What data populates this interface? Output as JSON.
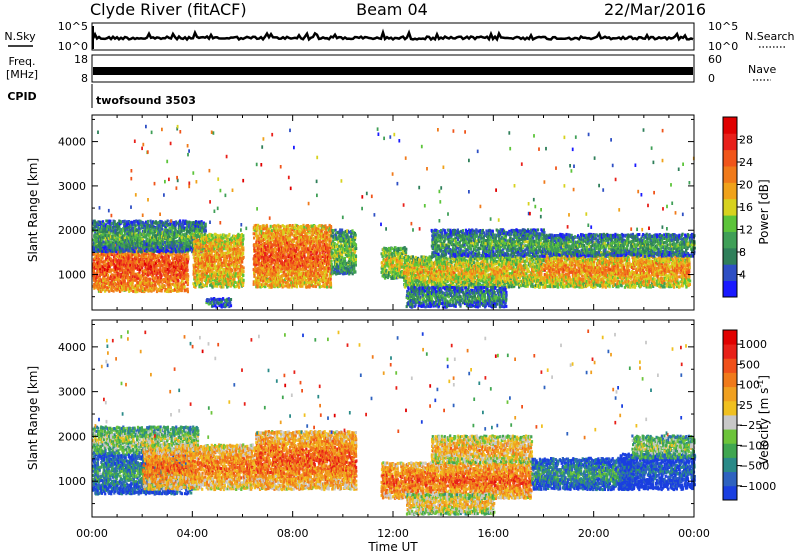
{
  "header": {
    "title_left": "Clyde River (fitACF)",
    "title_center": "Beam 04",
    "title_right": "22/Mar/2016"
  },
  "strip1": {
    "left_label": "N.Sky",
    "right_label": "N.Search",
    "left_ticks": [
      "10^5",
      "10^0"
    ],
    "right_ticks": [
      "10^5",
      "10^0"
    ]
  },
  "strip2": {
    "left_label_1": "Freq.",
    "left_label_2": "[MHz]",
    "right_label": "Nave",
    "left_ticks": [
      "18",
      "8"
    ],
    "right_ticks": [
      "60",
      "0"
    ]
  },
  "cpid": {
    "label": "CPID",
    "value": "twofsound 3503"
  },
  "chart_data": [
    {
      "type": "heatmap",
      "name": "power",
      "ylabel": "Slant Range [km]",
      "ylim": [
        200,
        4600
      ],
      "yticks": [
        1000,
        2000,
        3000,
        4000
      ],
      "xlim": [
        0,
        24
      ],
      "colorbar": {
        "label": "Power [dB]",
        "ticks": [
          4,
          8,
          12,
          16,
          20,
          24,
          28
        ],
        "tick_labels": [
          "4",
          "8",
          "12",
          "16",
          "20",
          "24",
          "28"
        ],
        "colors": [
          "#1a1aff",
          "#2e4fc4",
          "#2f7f5a",
          "#3f9f57",
          "#5cc43a",
          "#d7d21f",
          "#f0a21a",
          "#f07a1a",
          "#f0551a",
          "#e8201a",
          "#e00000"
        ]
      },
      "bands": [
        {
          "t0": 0.0,
          "t1": 3.8,
          "r0": 600,
          "r1": 1700,
          "level": 0.85
        },
        {
          "t0": 0.0,
          "t1": 4.5,
          "r0": 1500,
          "r1": 2200,
          "level": 0.35
        },
        {
          "t0": 4.0,
          "t1": 6.0,
          "r0": 700,
          "r1": 1900,
          "level": 0.7
        },
        {
          "t0": 6.4,
          "t1": 9.5,
          "r0": 700,
          "r1": 2100,
          "level": 0.8
        },
        {
          "t0": 9.5,
          "t1": 10.5,
          "r0": 1000,
          "r1": 2000,
          "level": 0.45
        },
        {
          "t0": 11.5,
          "t1": 12.5,
          "r0": 900,
          "r1": 1600,
          "level": 0.55
        },
        {
          "t0": 12.4,
          "t1": 18.0,
          "r0": 700,
          "r1": 1400,
          "level": 0.6
        },
        {
          "t0": 13.5,
          "t1": 18.0,
          "r0": 1400,
          "r1": 2000,
          "level": 0.35
        },
        {
          "t0": 18.0,
          "t1": 23.8,
          "r0": 700,
          "r1": 1500,
          "level": 0.7
        },
        {
          "t0": 18.0,
          "t1": 24.0,
          "r0": 1400,
          "r1": 1900,
          "level": 0.35
        },
        {
          "t0": 12.5,
          "t1": 16.5,
          "r0": 250,
          "r1": 700,
          "level": 0.3
        },
        {
          "t0": 4.5,
          "t1": 5.5,
          "r0": 250,
          "r1": 450,
          "level": 0.25
        }
      ]
    },
    {
      "type": "heatmap",
      "name": "velocity",
      "ylabel": "Slant Range [km]",
      "ylim": [
        200,
        4600
      ],
      "yticks": [
        1000,
        2000,
        3000,
        4000
      ],
      "xlim": [
        0,
        24
      ],
      "xlabel": "Time UT",
      "xticks": [
        0,
        4,
        8,
        12,
        16,
        20,
        24
      ],
      "xtick_labels": [
        "00:00",
        "04:00",
        "08:00",
        "12:00",
        "16:00",
        "20:00",
        "00:00"
      ],
      "colorbar": {
        "label": "Velocity [m s",
        "label_sup": "-1",
        "label_end": "]",
        "ticks": [
          1000,
          500,
          100,
          25,
          -25,
          -100,
          -500,
          -1000
        ],
        "tick_labels": [
          "1000",
          "500",
          "100",
          "25",
          "−25",
          "−100",
          "−500",
          "−1000"
        ],
        "colors": [
          "#1a3fe0",
          "#2e62c0",
          "#2a8a88",
          "#3fa650",
          "#6cc43a",
          "#c8c8c8",
          "#f0c020",
          "#f0a020",
          "#f07a1a",
          "#f0501a",
          "#e82018",
          "#e00000"
        ]
      },
      "bands": [
        {
          "t0": 0.0,
          "t1": 4.0,
          "r0": 700,
          "r1": 1600,
          "level": 0.25
        },
        {
          "t0": 0.0,
          "t1": 4.2,
          "r0": 1600,
          "r1": 2200,
          "level": 0.45
        },
        {
          "t0": 2.0,
          "t1": 6.5,
          "r0": 800,
          "r1": 1800,
          "level": 0.75
        },
        {
          "t0": 6.5,
          "t1": 10.5,
          "r0": 800,
          "r1": 2100,
          "level": 0.8
        },
        {
          "t0": 11.5,
          "t1": 17.5,
          "r0": 600,
          "r1": 1400,
          "level": 0.8
        },
        {
          "t0": 13.5,
          "t1": 17.5,
          "r0": 1400,
          "r1": 2000,
          "level": 0.65
        },
        {
          "t0": 17.5,
          "t1": 21.5,
          "r0": 800,
          "r1": 1500,
          "level": 0.25
        },
        {
          "t0": 21.0,
          "t1": 24.0,
          "r0": 800,
          "r1": 1600,
          "level": 0.1
        },
        {
          "t0": 21.5,
          "t1": 24.0,
          "r0": 1500,
          "r1": 2000,
          "level": 0.45
        },
        {
          "t0": 12.5,
          "t1": 16.0,
          "r0": 250,
          "r1": 700,
          "level": 0.6
        }
      ]
    }
  ]
}
